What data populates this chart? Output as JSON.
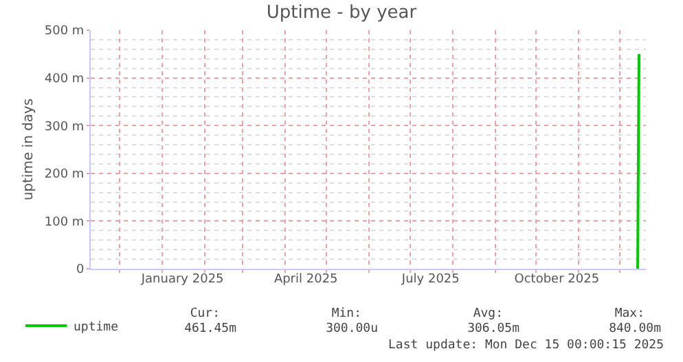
{
  "chart_data": {
    "type": "line",
    "title": "Uptime - by year",
    "ylabel": "uptime in days",
    "xlim": [
      "2024-11-10",
      "2025-12-20"
    ],
    "xticks": [
      {
        "value": "2024-12-01",
        "label": null
      },
      {
        "value": "2025-01-01",
        "label": null
      },
      {
        "value": "2025-01-16",
        "label": "January 2025"
      },
      {
        "value": "2025-02-01",
        "label": null
      },
      {
        "value": "2025-03-01",
        "label": null
      },
      {
        "value": "2025-04-01",
        "label": null
      },
      {
        "value": "2025-04-16",
        "label": "April 2025"
      },
      {
        "value": "2025-05-01",
        "label": null
      },
      {
        "value": "2025-06-01",
        "label": null
      },
      {
        "value": "2025-07-01",
        "label": null
      },
      {
        "value": "2025-07-16",
        "label": "July 2025"
      },
      {
        "value": "2025-08-01",
        "label": null
      },
      {
        "value": "2025-09-01",
        "label": null
      },
      {
        "value": "2025-10-01",
        "label": null
      },
      {
        "value": "2025-10-16",
        "label": "October 2025"
      },
      {
        "value": "2025-11-01",
        "label": null
      },
      {
        "value": "2025-12-01",
        "label": null
      }
    ],
    "ylim": [
      0,
      500
    ],
    "yticks": [
      0,
      {
        "value": 100,
        "label": "100 m"
      },
      {
        "value": 200,
        "label": "200 m"
      },
      {
        "value": 300,
        "label": "300 m"
      },
      {
        "value": 400,
        "label": "400 m"
      },
      {
        "value": 500,
        "label": "500 m"
      }
    ],
    "grid": true,
    "legend": "bottom left",
    "marker": "none",
    "line_style": "solid",
    "series": [
      {
        "name": "uptime",
        "color": "#00cc00",
        "x": [
          "2025-12-14T00:00",
          "2025-12-14T12:00",
          "2025-12-15T00:00"
        ],
        "values": [
          0,
          240,
          450
        ]
      }
    ],
    "annotations": [
      "Cur:",
      "Min:",
      "Avg:",
      "Max:",
      "461.45m",
      "300.00u",
      "306.05m",
      "840.00m",
      "Last update: Mon Dec 15 00:00:15 2025"
    ]
  }
}
